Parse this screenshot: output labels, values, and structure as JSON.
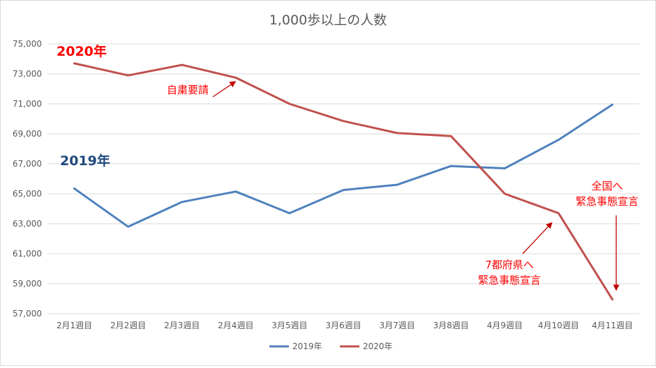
{
  "chart_data": {
    "type": "line",
    "title": "1,000歩以上の人数",
    "xlabel": "",
    "ylabel": "",
    "categories": [
      "2月1週目",
      "2月2週目",
      "2月3週目",
      "2月4週目",
      "3月5週目",
      "3月6週目",
      "3月7週目",
      "3月8週目",
      "4月9週目",
      "4月10週目",
      "4月11週目"
    ],
    "ylim": [
      57000,
      75000
    ],
    "yticks": [
      57000,
      59000,
      61000,
      63000,
      65000,
      67000,
      69000,
      71000,
      73000,
      75000
    ],
    "ytick_labels": [
      "57,000",
      "59,000",
      "61,000",
      "63,000",
      "65,000",
      "67,000",
      "69,000",
      "71,000",
      "73,000",
      "75,000"
    ],
    "grid": true,
    "legend_position": "bottom",
    "series": [
      {
        "name": "2019年",
        "color": "#4f81bd",
        "values": [
          65350,
          62800,
          64450,
          65150,
          63700,
          65250,
          65600,
          66850,
          66700,
          68600,
          70950
        ]
      },
      {
        "name": "2020年",
        "color": "#c0504d",
        "values": [
          73700,
          72900,
          73600,
          72750,
          71000,
          69850,
          69050,
          68850,
          65000,
          63700,
          57950
        ]
      }
    ],
    "series_tags": [
      {
        "text": "2020年",
        "color": "#ff0000"
      },
      {
        "text": "2019年",
        "color": "#1f497d"
      }
    ],
    "annotations": [
      {
        "text": [
          "自粛要請"
        ],
        "color": "#ff0000"
      },
      {
        "text": [
          "7都府県へ",
          "緊急事態宣言"
        ],
        "color": "#ff0000"
      },
      {
        "text": [
          "全国へ",
          "緊急事態宣言"
        ],
        "color": "#ff0000"
      }
    ]
  }
}
